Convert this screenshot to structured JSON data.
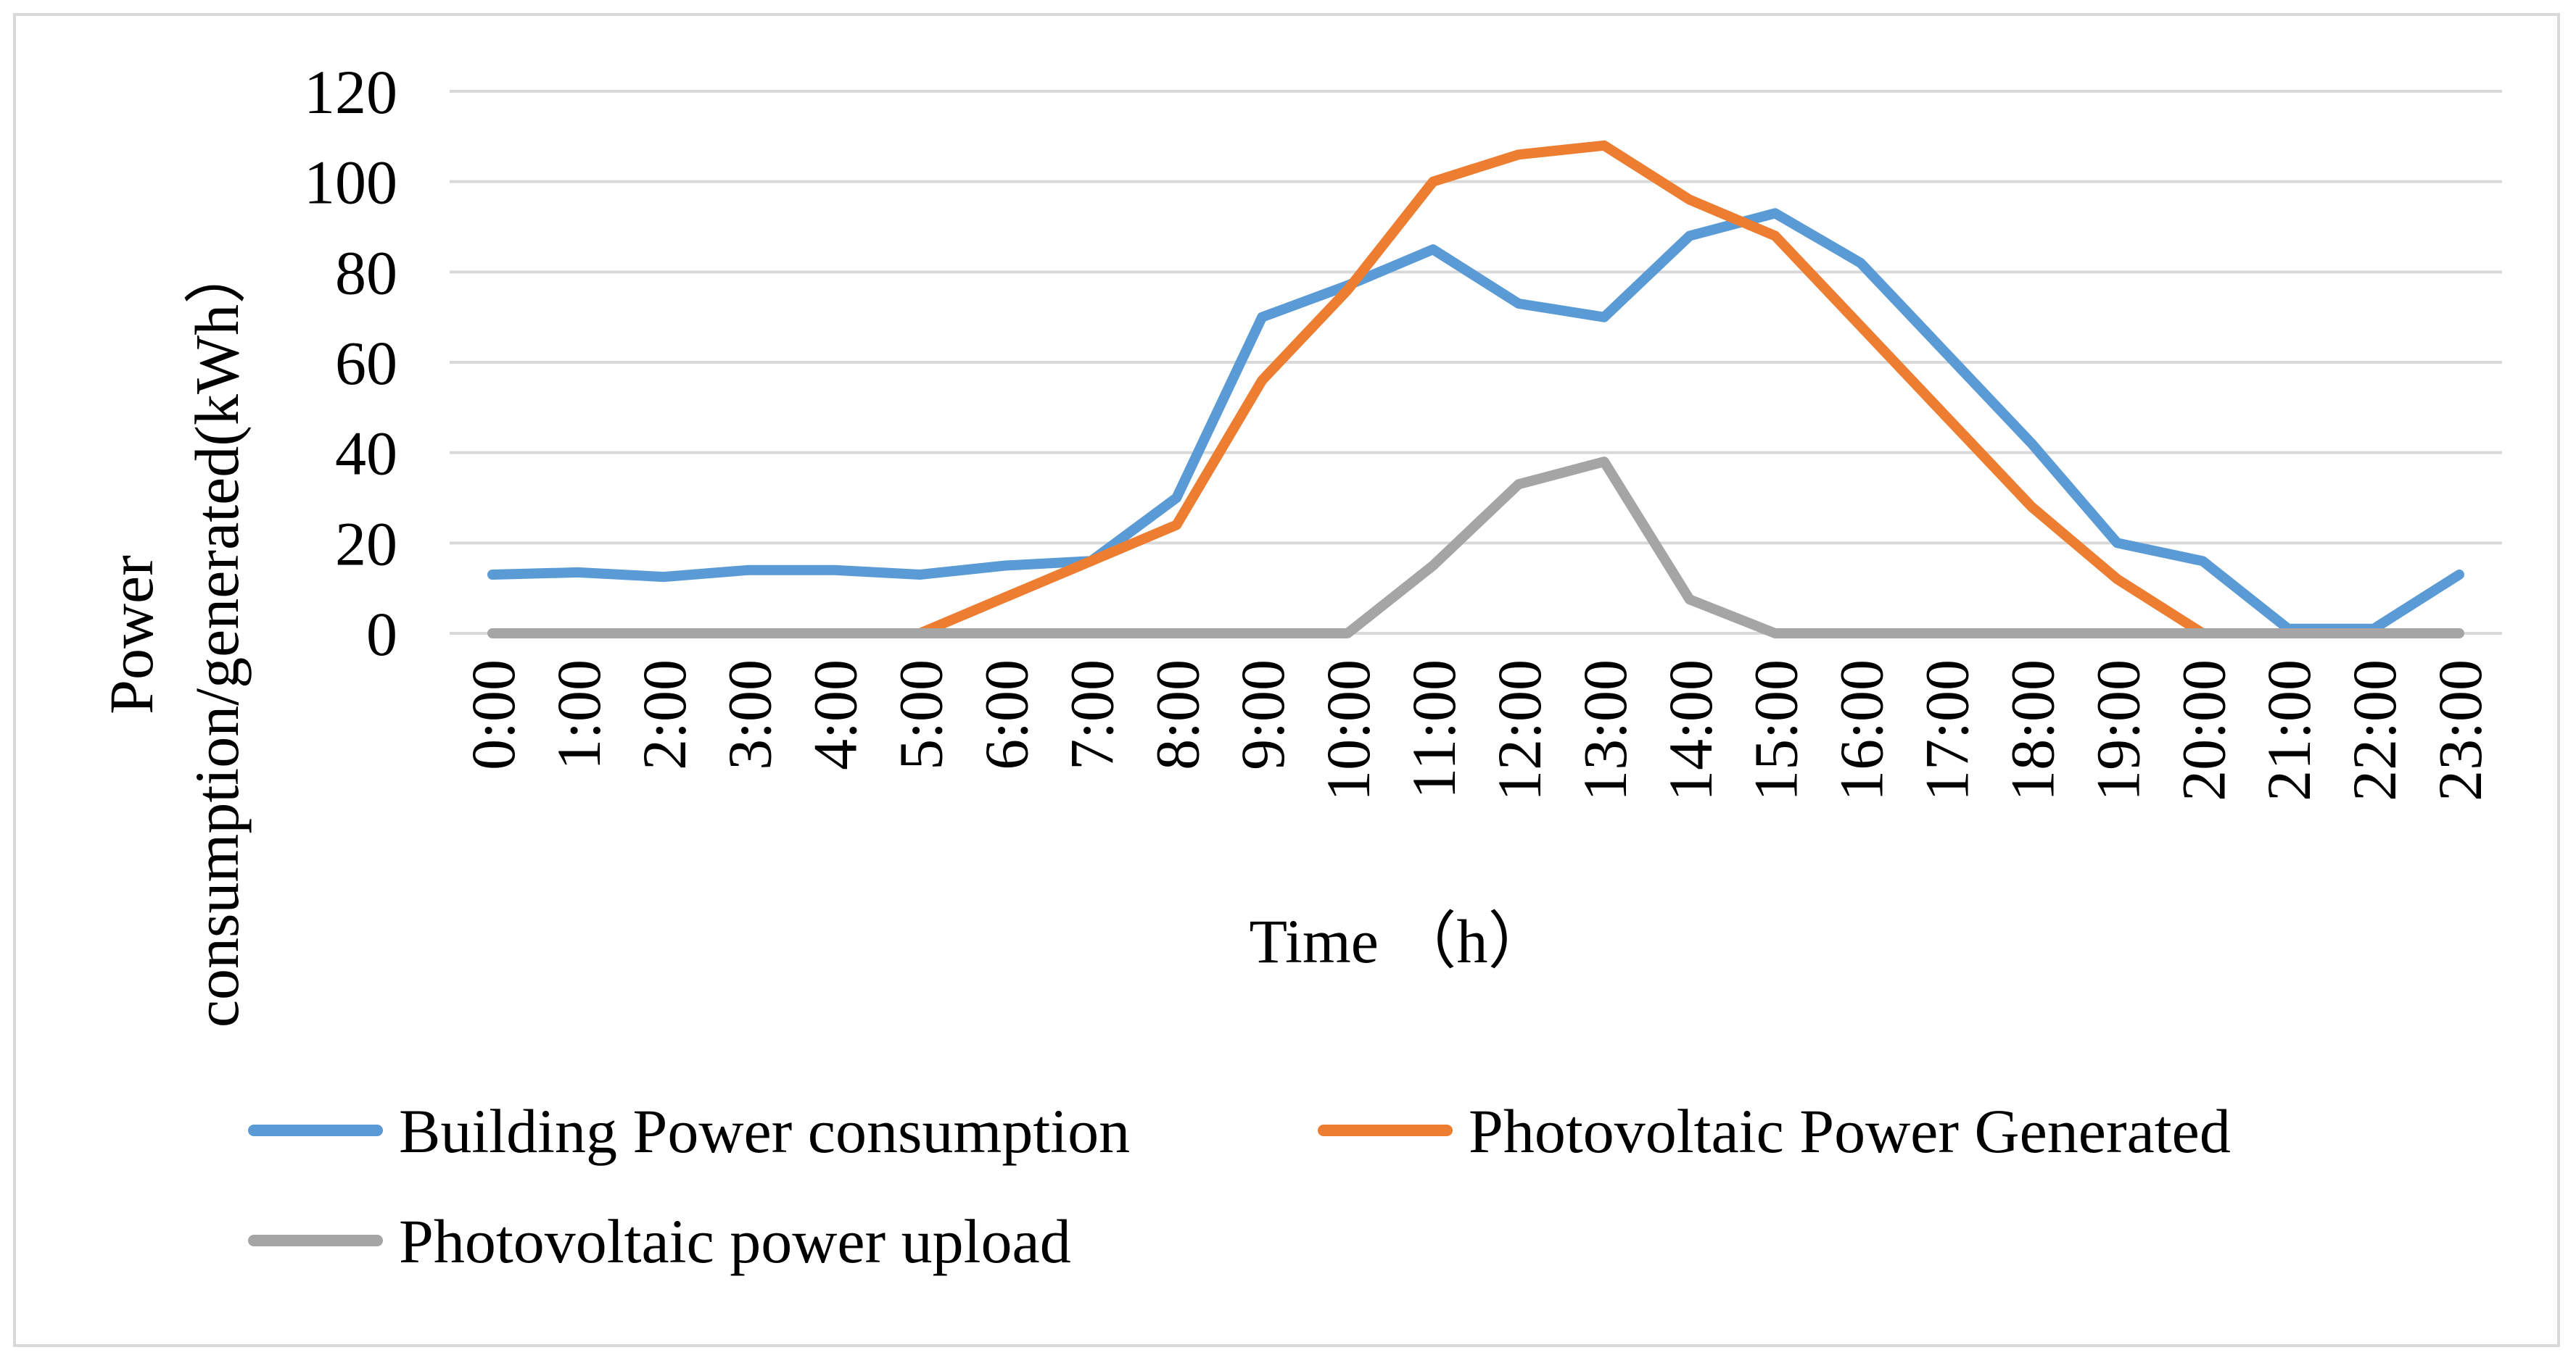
{
  "chart_data": {
    "type": "line",
    "title": "",
    "xlabel": "Time （h）",
    "ylabel_lines": [
      "Power",
      "consumption/generated(kWh）"
    ],
    "ylim": [
      0,
      120
    ],
    "yticks": [
      "0",
      "20",
      "40",
      "60",
      "80",
      "100",
      "120"
    ],
    "grid": true,
    "legend_position": "bottom",
    "categories": [
      "0:00",
      "1:00",
      "2:00",
      "3:00",
      "4:00",
      "5:00",
      "6:00",
      "7:00",
      "8:00",
      "9:00",
      "10:00",
      "11:00",
      "12:00",
      "13:00",
      "14:00",
      "15:00",
      "16:00",
      "17:00",
      "18:00",
      "19:00",
      "20:00",
      "21:00",
      "22:00",
      "23:00"
    ],
    "series": [
      {
        "name": "Building Power consumption",
        "color": "#5b9bd5",
        "values": [
          13,
          13.5,
          12.5,
          14,
          14,
          13,
          15,
          16,
          30,
          70,
          77,
          85,
          73,
          70,
          88,
          93,
          82,
          62,
          42,
          20,
          16,
          1,
          1,
          13
        ]
      },
      {
        "name": "Photovoltaic Power Generated",
        "color": "#ed7d31",
        "values": [
          null,
          null,
          null,
          null,
          null,
          0,
          8,
          16,
          24,
          56,
          76,
          100,
          106,
          108,
          96,
          88,
          68,
          48,
          28,
          12,
          0,
          null,
          null,
          null
        ]
      },
      {
        "name": "Photovoltaic power upload",
        "color": "#a5a5a5",
        "values": [
          0,
          0,
          0,
          0,
          0,
          0,
          0,
          0,
          0,
          0,
          0,
          15,
          33,
          38,
          7.5,
          0,
          0,
          0,
          0,
          0,
          0,
          0,
          0,
          0
        ]
      }
    ]
  }
}
